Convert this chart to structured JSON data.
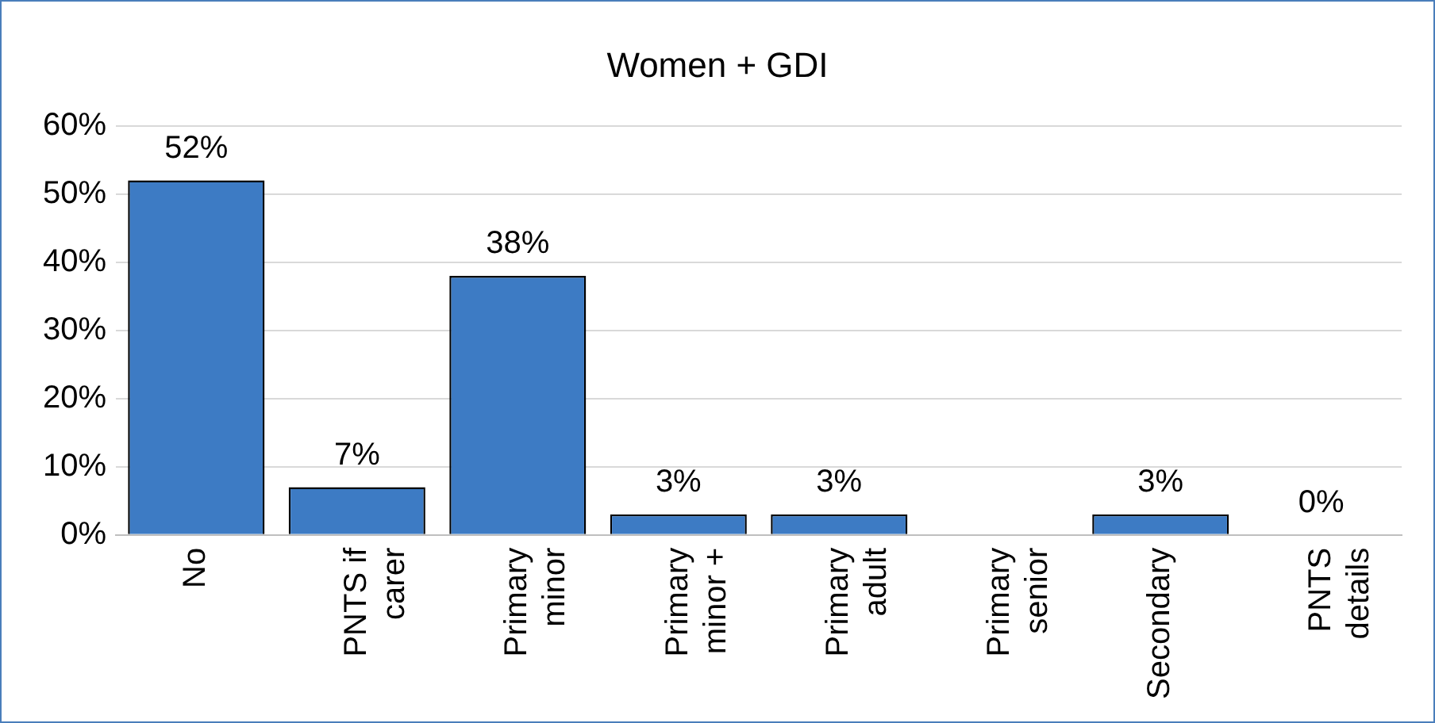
{
  "chart_data": {
    "type": "bar",
    "title": "Women + GDI",
    "categories": [
      "No",
      "PNTS if carer",
      "Primary minor",
      "Primary minor +",
      "Primary adult",
      "Primary senior",
      "Secondary",
      "PNTS details"
    ],
    "values": [
      52,
      7,
      38,
      3,
      3,
      null,
      3,
      0
    ],
    "color": "#3d7bc4",
    "ylim": [
      0,
      60
    ],
    "yticks": [
      {
        "value": 0,
        "label": "0%"
      },
      {
        "value": 10,
        "label": "10%"
      },
      {
        "value": 20,
        "label": "20%"
      },
      {
        "value": 30,
        "label": "30%"
      },
      {
        "value": 40,
        "label": "40%"
      },
      {
        "value": 50,
        "label": "50%"
      },
      {
        "value": 60,
        "label": "60%"
      }
    ],
    "value_labels": [
      "52%",
      "7%",
      "38%",
      "3%",
      "3%",
      null,
      "3%",
      "0%"
    ],
    "grid": "y",
    "legend": false
  }
}
